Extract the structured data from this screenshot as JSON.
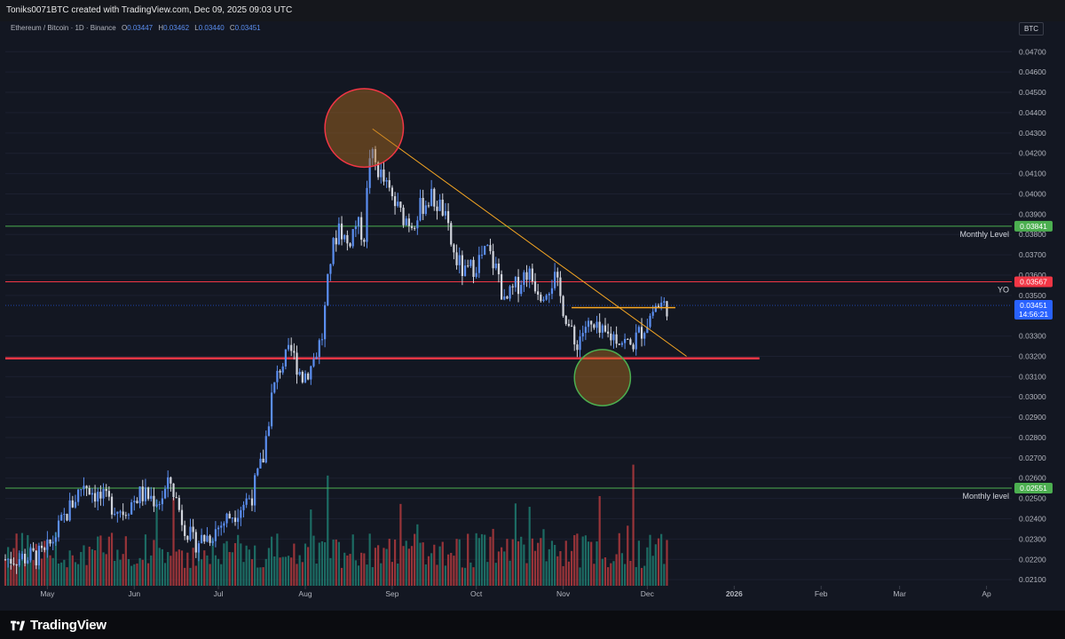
{
  "header": {
    "attribution": "Toniks0071BTC created with TradingView.com, Dec 09, 2025 09:03 UTC"
  },
  "legend": {
    "symbol": "Ethereum / Bitcoin · 1D · Binance",
    "open_label": "O",
    "open": "0.03447",
    "high_label": "H",
    "high": "0.03462",
    "low_label": "L",
    "low": "0.03440",
    "close_label": "C",
    "close": "0.03451"
  },
  "currency_badge": "BTC",
  "footer": {
    "brand": "TradingView"
  },
  "colors": {
    "background": "#131722",
    "up": "#5b8ef0",
    "down": "#d1d4dc",
    "vol_up": "#1f7a6e",
    "vol_down": "#b0393d",
    "red_level": "#f23645",
    "green_level": "#4caf50",
    "orange": "#f5a623"
  },
  "chart_data": {
    "type": "candlestick",
    "title": "",
    "xlabel": "",
    "ylabel": "",
    "ylim": [
      0.0207,
      0.0478
    ],
    "y_ticks": [
      "0.04700",
      "0.04600",
      "0.04500",
      "0.04400",
      "0.04300",
      "0.04200",
      "0.04100",
      "0.04000",
      "0.03900",
      "0.03800",
      "0.03700",
      "0.03600",
      "0.03500",
      "0.03300",
      "0.03200",
      "0.03100",
      "0.03000",
      "0.02900",
      "0.02800",
      "0.02700",
      "0.02600",
      "0.02500",
      "0.02400",
      "0.02300",
      "0.02200",
      "0.02100"
    ],
    "x_range": [
      "2025-04-16",
      "2026-04-10"
    ],
    "x_ticks": [
      {
        "date": "2025-05-01",
        "label": "May"
      },
      {
        "date": "2025-06-01",
        "label": "Jun"
      },
      {
        "date": "2025-07-01",
        "label": "Jul"
      },
      {
        "date": "2025-08-01",
        "label": "Aug"
      },
      {
        "date": "2025-09-01",
        "label": "Sep"
      },
      {
        "date": "2025-10-01",
        "label": "Oct"
      },
      {
        "date": "2025-11-01",
        "label": "Nov"
      },
      {
        "date": "2025-12-01",
        "label": "Dec"
      },
      {
        "date": "2026-01-01",
        "label": "2026"
      },
      {
        "date": "2026-02-01",
        "label": "Feb"
      },
      {
        "date": "2026-03-01",
        "label": "Mar"
      },
      {
        "date": "2026-04-01",
        "label": "Ap"
      }
    ],
    "price_waypoints": [
      [
        "2025-04-16",
        0.022
      ],
      [
        "2025-04-30",
        0.0222
      ],
      [
        "2025-05-10",
        0.0248
      ],
      [
        "2025-05-14",
        0.0258
      ],
      [
        "2025-05-20",
        0.025
      ],
      [
        "2025-05-28",
        0.0244
      ],
      [
        "2025-06-03",
        0.0252
      ],
      [
        "2025-06-10",
        0.0249
      ],
      [
        "2025-06-14",
        0.0258
      ],
      [
        "2025-06-18",
        0.024
      ],
      [
        "2025-06-22",
        0.0228
      ],
      [
        "2025-06-28",
        0.0232
      ],
      [
        "2025-07-04",
        0.024
      ],
      [
        "2025-07-08",
        0.0245
      ],
      [
        "2025-07-13",
        0.0252
      ],
      [
        "2025-07-17",
        0.027
      ],
      [
        "2025-07-20",
        0.03
      ],
      [
        "2025-07-23",
        0.0315
      ],
      [
        "2025-07-27",
        0.0322
      ],
      [
        "2025-07-31",
        0.031
      ],
      [
        "2025-08-03",
        0.0315
      ],
      [
        "2025-08-07",
        0.033
      ],
      [
        "2025-08-10",
        0.0368
      ],
      [
        "2025-08-13",
        0.0385
      ],
      [
        "2025-08-16",
        0.0375
      ],
      [
        "2025-08-19",
        0.0385
      ],
      [
        "2025-08-22",
        0.038
      ],
      [
        "2025-08-24",
        0.042
      ],
      [
        "2025-08-27",
        0.0412
      ],
      [
        "2025-08-31",
        0.04
      ],
      [
        "2025-09-04",
        0.039
      ],
      [
        "2025-09-08",
        0.0386
      ],
      [
        "2025-09-12",
        0.0395
      ],
      [
        "2025-09-15",
        0.0398
      ],
      [
        "2025-09-19",
        0.0392
      ],
      [
        "2025-09-23",
        0.037
      ],
      [
        "2025-09-27",
        0.036
      ],
      [
        "2025-10-01",
        0.0366
      ],
      [
        "2025-10-05",
        0.0372
      ],
      [
        "2025-10-09",
        0.036
      ],
      [
        "2025-10-11",
        0.0345
      ],
      [
        "2025-10-14",
        0.0352
      ],
      [
        "2025-10-19",
        0.0362
      ],
      [
        "2025-10-24",
        0.0352
      ],
      [
        "2025-10-29",
        0.0358
      ],
      [
        "2025-11-02",
        0.034
      ],
      [
        "2025-11-05",
        0.0325
      ],
      [
        "2025-11-09",
        0.0335
      ],
      [
        "2025-11-15",
        0.033
      ],
      [
        "2025-11-20",
        0.033
      ],
      [
        "2025-11-25",
        0.0325
      ],
      [
        "2025-11-30",
        0.0335
      ],
      [
        "2025-12-04",
        0.0345
      ],
      [
        "2025-12-08",
        0.0345
      ]
    ],
    "volume_note": "volume histogram at bottom, red = down day, green = up day",
    "levels": [
      {
        "name": "Monthly Level",
        "label": "Monthly Level",
        "price": 0.03841,
        "badge": "0.03841",
        "color": "#4caf50",
        "x_end": "2026-04-10",
        "width": 1
      },
      {
        "name": "YO",
        "label": "YO",
        "price": 0.03567,
        "badge": "0.03567",
        "color": "#f23645",
        "x_end": "2026-04-10",
        "width": 1
      },
      {
        "name": "support",
        "label": "",
        "price": 0.0319,
        "badge": "",
        "color": "#f23645",
        "x_end": "2026-01-10",
        "width": 2.5
      },
      {
        "name": "Monthly level",
        "label": "Monthly level",
        "price": 0.02551,
        "badge": "0.02551",
        "color": "#4caf50",
        "x_end": "2026-04-10",
        "width": 1
      }
    ],
    "current_price": {
      "value": "0.03451",
      "price": 0.03451,
      "countdown": "14:56:21",
      "color": "#2962ff"
    },
    "annotations": [
      {
        "type": "trendline",
        "from": [
          "2025-08-25",
          0.0432
        ],
        "to": [
          "2025-12-15",
          0.032
        ],
        "color": "#f5a623"
      },
      {
        "type": "hline",
        "from": [
          "2025-11-04",
          0.0344
        ],
        "to": [
          "2025-12-11",
          0.0344
        ],
        "color": "#f5a623"
      },
      {
        "type": "circle",
        "center": [
          "2025-08-22",
          0.04325
        ],
        "radius_days": 14,
        "color": "#f23645"
      },
      {
        "type": "circle",
        "center": [
          "2025-11-15",
          0.03095
        ],
        "radius_days": 10,
        "color": "#4caf50"
      }
    ]
  }
}
